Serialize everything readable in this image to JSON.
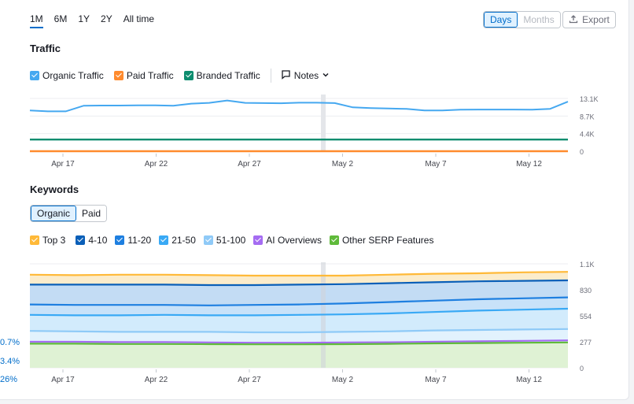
{
  "periods": [
    "1M",
    "6M",
    "1Y",
    "2Y",
    "All time"
  ],
  "active_period": "1M",
  "granularity": {
    "days": "Days",
    "months": "Months"
  },
  "export_label": "Export",
  "traffic": {
    "title": "Traffic",
    "legend": [
      {
        "label": "Organic Traffic",
        "color": "#45a8f0"
      },
      {
        "label": "Paid Traffic",
        "color": "#ff8b2e"
      },
      {
        "label": "Branded Traffic",
        "color": "#0d8d6f"
      }
    ],
    "notes_label": "Notes"
  },
  "keywords": {
    "title": "Keywords",
    "tabs": [
      "Organic",
      "Paid"
    ],
    "legend": [
      {
        "label": "Top 3",
        "color": "#ffb938"
      },
      {
        "label": "4-10",
        "color": "#0a5fb8"
      },
      {
        "label": "11-20",
        "color": "#1e7fe0"
      },
      {
        "label": "21-50",
        "color": "#39a9f5"
      },
      {
        "label": "51-100",
        "color": "#8fcaf7"
      },
      {
        "label": "AI Overviews",
        "color": "#a56cf2"
      },
      {
        "label": "Other SERP Features",
        "color": "#5fba3a"
      }
    ]
  },
  "side_percents": [
    "0.7%",
    "3.4%",
    "26%"
  ],
  "chart_data": [
    {
      "type": "line",
      "title": "Traffic",
      "x": [
        "Apr 14",
        "Apr 15",
        "Apr 16",
        "Apr 17",
        "Apr 18",
        "Apr 19",
        "Apr 20",
        "Apr 21",
        "Apr 22",
        "Apr 23",
        "Apr 24",
        "Apr 25",
        "Apr 26",
        "Apr 27",
        "Apr 28",
        "Apr 29",
        "Apr 30",
        "May 1",
        "May 2",
        "May 3",
        "May 4",
        "May 5",
        "May 6",
        "May 7",
        "May 8",
        "May 9",
        "May 10",
        "May 11",
        "May 12",
        "May 13",
        "May 14"
      ],
      "x_ticks": [
        "Apr 17",
        "Apr 22",
        "Apr 27",
        "May 2",
        "May 7",
        "May 12"
      ],
      "y_ticks": [
        "0",
        "4.4K",
        "8.7K",
        "13.1K"
      ],
      "ylim": [
        0,
        13100
      ],
      "series": [
        {
          "name": "Organic Traffic",
          "color": "#45a8f0",
          "values": [
            10100,
            9900,
            9900,
            11300,
            11350,
            11350,
            11400,
            11400,
            11300,
            11800,
            12000,
            12600,
            12000,
            11950,
            11900,
            12050,
            12050,
            11950,
            10900,
            10700,
            10600,
            10500,
            10100,
            10100,
            10300,
            10350,
            10350,
            10350,
            10300,
            10500,
            12300
          ]
        },
        {
          "name": "Paid Traffic",
          "color": "#ff8b2e",
          "values": [
            0,
            0,
            0,
            0,
            0,
            0,
            0,
            0,
            0,
            0,
            0,
            0,
            0,
            0,
            0,
            0,
            0,
            0,
            0,
            0,
            0,
            0,
            0,
            0,
            0,
            0,
            0,
            0,
            0,
            0,
            0
          ]
        },
        {
          "name": "Branded Traffic",
          "color": "#0d8d6f",
          "values": [
            2900,
            2900,
            2900,
            2900,
            2900,
            2900,
            2900,
            2900,
            2900,
            2900,
            2900,
            2900,
            2900,
            2900,
            2900,
            2900,
            2900,
            2900,
            2900,
            2900,
            2900,
            2900,
            2900,
            2900,
            2900,
            2900,
            2900,
            2900,
            2900,
            2900,
            2900
          ]
        }
      ]
    },
    {
      "type": "area",
      "title": "Keywords",
      "x_ticks": [
        "Apr 17",
        "Apr 22",
        "Apr 27",
        "May 2",
        "May 7",
        "May 12"
      ],
      "y_ticks": [
        "0",
        "277",
        "554",
        "830",
        "1.1K"
      ],
      "ylim": [
        0,
        1100
      ],
      "series": [
        {
          "name": "Top 3",
          "color": "#ffb938",
          "fill": "#fbeccb",
          "values": [
            985,
            980,
            985,
            985,
            980,
            975,
            975,
            975,
            985,
            995,
            1000,
            1010,
            1015
          ]
        },
        {
          "name": "4-10",
          "color": "#0a5fb8",
          "fill": "#c3dcf4",
          "values": [
            880,
            880,
            880,
            880,
            875,
            875,
            880,
            885,
            895,
            905,
            915,
            920,
            925
          ]
        },
        {
          "name": "11-20",
          "color": "#1e7fe0",
          "fill": "#c8e2f9",
          "values": [
            670,
            665,
            665,
            665,
            660,
            665,
            670,
            680,
            695,
            710,
            725,
            735,
            745
          ]
        },
        {
          "name": "21-50",
          "color": "#39a9f5",
          "fill": "#d2ebfc",
          "values": [
            560,
            555,
            555,
            560,
            555,
            555,
            560,
            565,
            575,
            590,
            605,
            615,
            625
          ]
        },
        {
          "name": "51-100",
          "color": "#8fcaf7",
          "fill": "#e2f2fd",
          "values": [
            390,
            385,
            380,
            380,
            380,
            375,
            375,
            380,
            385,
            395,
            400,
            405,
            410
          ]
        },
        {
          "name": "AI Overviews",
          "color": "#a56cf2",
          "fill": "none",
          "values": [
            275,
            275,
            272,
            272,
            268,
            265,
            265,
            268,
            270,
            275,
            280,
            285,
            290
          ]
        },
        {
          "name": "Other SERP Features",
          "color": "#5fba3a",
          "fill": "#dff2d4",
          "values": [
            255,
            255,
            252,
            252,
            250,
            248,
            248,
            250,
            253,
            258,
            262,
            265,
            268
          ]
        }
      ]
    }
  ]
}
